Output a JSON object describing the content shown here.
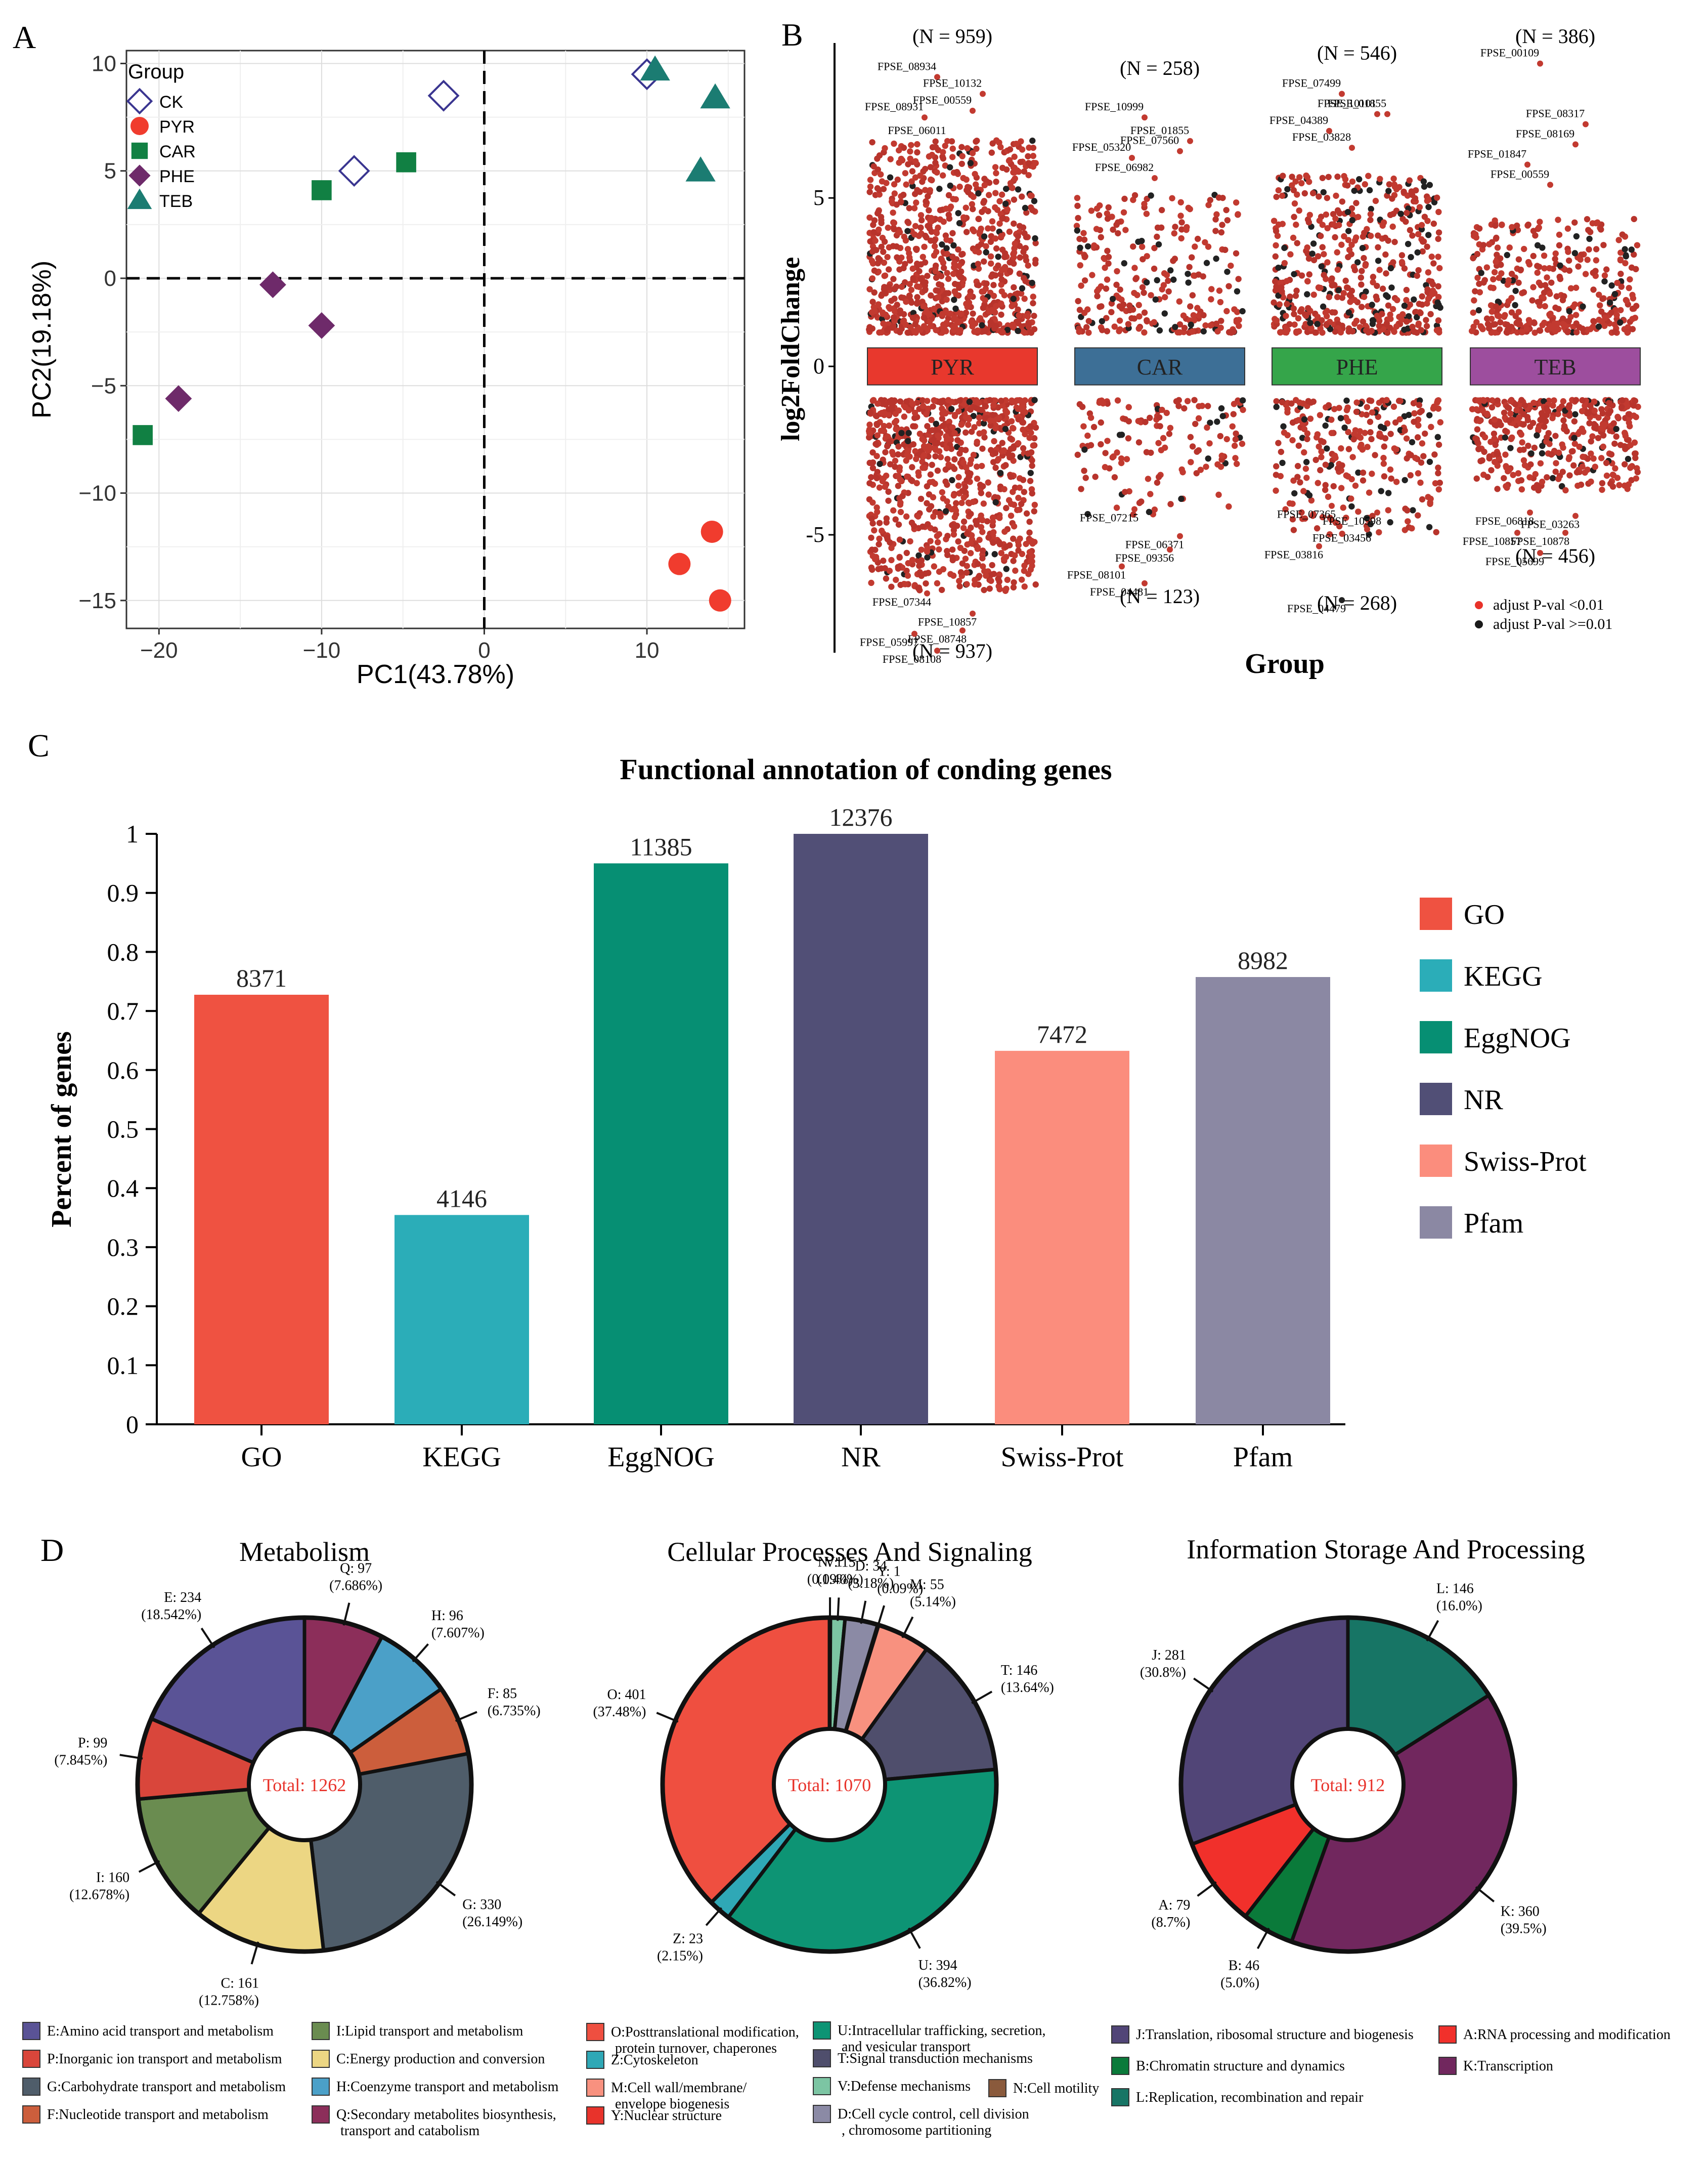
{
  "panel_labels": [
    "A",
    "B",
    "C",
    "D"
  ],
  "chart_data": [
    {
      "type": "scatter",
      "id": "pca",
      "xlabel": "PC1(43.78%)",
      "ylabel": "PC2(19.18%)",
      "xlim": [
        -22,
        16
      ],
      "ylim": [
        -16.3,
        10.6
      ],
      "xticks": [
        -20,
        -10,
        0,
        10
      ],
      "xtick_labels": [
        "−20",
        "−10",
        "0",
        "10"
      ],
      "yticks": [
        -15,
        -10,
        -5,
        0,
        5,
        10
      ],
      "ytick_labels": [
        "−15",
        "−10",
        "−5",
        "0",
        "5",
        "10"
      ],
      "legend_title": "Group",
      "series": [
        {
          "name": "CK",
          "marker": "diamond-open",
          "color": "#3a3590",
          "points": [
            [
              -8,
              5
            ],
            [
              -2.5,
              8.5
            ],
            [
              10,
              9.5
            ]
          ]
        },
        {
          "name": "PYR",
          "marker": "circle",
          "color": "#f03c2e",
          "points": [
            [
              12,
              -13.3
            ],
            [
              14,
              -11.8
            ],
            [
              14.5,
              -15
            ]
          ]
        },
        {
          "name": "CAR",
          "marker": "square",
          "color": "#118043",
          "points": [
            [
              -21,
              -7.3
            ],
            [
              -10,
              4.1
            ],
            [
              -4.8,
              5.4
            ]
          ]
        },
        {
          "name": "PHE",
          "marker": "diamond",
          "color": "#6e2a6a",
          "points": [
            [
              -13,
              -0.3
            ],
            [
              -10,
              -2.2
            ],
            [
              -18.8,
              -5.6
            ]
          ]
        },
        {
          "name": "TEB",
          "marker": "triangle",
          "color": "#1b7c72",
          "points": [
            [
              10.5,
              9.7
            ],
            [
              14.2,
              8.4
            ],
            [
              13.3,
              5
            ]
          ]
        }
      ]
    },
    {
      "type": "scatter",
      "id": "volcano-groups",
      "ylabel": "log2FoldChange",
      "xlabel": "Group",
      "ylim": [
        -8.5,
        9.6
      ],
      "yticks": [
        -5,
        0,
        5
      ],
      "groups": [
        {
          "name": "PYR",
          "color": "#e8382d",
          "n_up": "(N = 959)",
          "n_down": "(N = 937)",
          "up_labels": [
            [
              "FPSE_08934",
              8.8
            ],
            [
              "FPSE_10132",
              8.3
            ],
            [
              "FPSE_00559",
              7.8
            ],
            [
              "FPSE_08931",
              7.6
            ],
            [
              "FPSE_06011",
              6.9
            ]
          ],
          "down_labels": [
            [
              "FPSE_07344",
              -7.1
            ],
            [
              "FPSE_10857",
              -7.7
            ],
            [
              "FPSE_08748",
              -8.2
            ],
            [
              "FPSE_05997",
              -8.3
            ],
            [
              "FPSE_08108",
              -8.8
            ]
          ]
        },
        {
          "name": "CAR",
          "color": "#3d6f96",
          "n_up": "(N = 258)",
          "n_down": "(N = 123)",
          "up_labels": [
            [
              "FPSE_10999",
              7.6
            ],
            [
              "FPSE_01855",
              6.9
            ],
            [
              "FPSE_07560",
              6.6
            ],
            [
              "FPSE_05320",
              6.4
            ],
            [
              "FPSE_06982",
              5.8
            ]
          ],
          "down_labels": [
            [
              "FPSE_07215",
              -4.6
            ],
            [
              "FPSE_06371",
              -5.4
            ],
            [
              "FPSE_09356",
              -5.8
            ],
            [
              "FPSE_08101",
              -6.3
            ],
            [
              "FPSE_04481",
              -6.8
            ]
          ]
        },
        {
          "name": "PHE",
          "color": "#35a54a",
          "n_up": "(N = 546)",
          "n_down": "(N = 268)",
          "up_labels": [
            [
              "FPSE_07499",
              8.3
            ],
            [
              "FPSE_01855",
              7.7
            ],
            [
              "FPSE_10101",
              7.7
            ],
            [
              "FPSE_04389",
              7.2
            ],
            [
              "FPSE_03828",
              6.7
            ]
          ],
          "down_labels": [
            [
              "FPSE_07365",
              -4.5
            ],
            [
              "FPSE_10598",
              -4.7
            ],
            [
              "FPSE_03456",
              -5.2
            ],
            [
              "FPSE_03816",
              -5.7
            ],
            [
              "FPSE_04479",
              -7.3
            ]
          ]
        },
        {
          "name": "TEB",
          "color": "#9d4e9e",
          "n_up": "(N = 386)",
          "n_down": "(N = 456)",
          "up_labels": [
            [
              "FPSE_00109",
              9.2
            ],
            [
              "FPSE_08317",
              7.4
            ],
            [
              "FPSE_08169",
              6.8
            ],
            [
              "FPSE_01847",
              6.2
            ],
            [
              "FPSE_00559",
              5.6
            ]
          ],
          "down_labels": [
            [
              "FPSE_06818",
              -4.7
            ],
            [
              "FPSE_03263",
              -4.8
            ],
            [
              "FPSE_10878",
              -5.3
            ],
            [
              "FPSE_10857",
              -5.3
            ],
            [
              "FPSE_05699",
              -5.9
            ]
          ]
        }
      ],
      "legend": [
        {
          "label": "adjust P-val <0.01",
          "color": "#e8322a"
        },
        {
          "label": "adjust P-val >=0.01",
          "color": "#1a1a1a"
        }
      ]
    },
    {
      "type": "bar",
      "id": "functional-annotation",
      "title": "Functional annotation of conding genes",
      "ylabel": "Percent of genes",
      "xlabel": "",
      "ylim": [
        0,
        1
      ],
      "yticks": [
        "0",
        "0.1",
        "0.2",
        "0.3",
        "0.4",
        "0.5",
        "0.6",
        "0.7",
        "0.8",
        "0.9",
        "1"
      ],
      "categories": [
        "GO",
        "KEGG",
        "EggNOG",
        "NR",
        "Swiss-Prot",
        "Pfam"
      ],
      "values": [
        0.7275,
        0.3545,
        0.95,
        1.0,
        0.6325,
        0.7575
      ],
      "labels": [
        "8371",
        "4146",
        "11385",
        "12376",
        "7472",
        "8982"
      ],
      "colors": [
        "#ef5241",
        "#2badb8",
        "#068f73",
        "#514f76",
        "#fb8d7d",
        "#8b88a3"
      ]
    },
    {
      "type": "pie",
      "id": "metabolism",
      "title": "Metabolism",
      "total_label": "Total: 1262",
      "slices": [
        {
          "code": "Q",
          "value": 97,
          "pct": "(7.686%)",
          "color": "#8c2e5a"
        },
        {
          "code": "H",
          "value": 96,
          "pct": "(7.607%)",
          "color": "#4ba0c8"
        },
        {
          "code": "F",
          "value": 85,
          "pct": "(6.735%)",
          "color": "#cc5e3c"
        },
        {
          "code": "G",
          "value": 330,
          "pct": "(26.149%)",
          "color": "#4f5d6a"
        },
        {
          "code": "C",
          "value": 161,
          "pct": "(12.758%)",
          "color": "#ecd683"
        },
        {
          "code": "I",
          "value": 160,
          "pct": "(12.678%)",
          "color": "#6a8c50"
        },
        {
          "code": "P",
          "value": 99,
          "pct": "(7.845%)",
          "color": "#d9463b"
        },
        {
          "code": "E",
          "value": 234,
          "pct": "(18.542%)",
          "color": "#5a5396"
        }
      ]
    },
    {
      "type": "pie",
      "id": "cellular-processes",
      "title": "Cellular Processes And Signaling",
      "total_label": "Total: 1070",
      "slices": [
        {
          "code": "N",
          "value": 1,
          "pct": "(0.09%)",
          "color": "#8a5a3c"
        },
        {
          "code": "V",
          "value": 15,
          "pct": "(1.40%)",
          "color": "#7cc5a3"
        },
        {
          "code": "D",
          "value": 34,
          "pct": "(3.18%)",
          "color": "#8b8aa5"
        },
        {
          "code": "Y",
          "value": 1,
          "pct": "(0.09%)",
          "color": "#e8332b"
        },
        {
          "code": "M",
          "value": 55,
          "pct": "(5.14%)",
          "color": "#f8917f"
        },
        {
          "code": "T",
          "value": 146,
          "pct": "(13.64%)",
          "color": "#4f4e6c"
        },
        {
          "code": "U",
          "value": 394,
          "pct": "(36.82%)",
          "color": "#0d9474"
        },
        {
          "code": "Z",
          "value": 23,
          "pct": "(2.15%)",
          "color": "#2fa8b6"
        },
        {
          "code": "O",
          "value": 401,
          "pct": "(37.48%)",
          "color": "#ef4f40"
        }
      ]
    },
    {
      "type": "pie",
      "id": "information-storage",
      "title": "Information Storage And Processing",
      "total_label": "Total: 912",
      "slices": [
        {
          "code": "L",
          "value": 146,
          "pct": "(16.0%)",
          "color": "#177565"
        },
        {
          "code": "K",
          "value": 360,
          "pct": "(39.5%)",
          "color": "#71275e"
        },
        {
          "code": "B",
          "value": 46,
          "pct": "(5.0%)",
          "color": "#0a7a3a"
        },
        {
          "code": "A",
          "value": 79,
          "pct": "(8.7%)",
          "color": "#f1302b"
        },
        {
          "code": "J",
          "value": 281,
          "pct": "(30.8%)",
          "color": "#514577"
        }
      ]
    }
  ],
  "pie_legend": {
    "metabolism_col1": [
      {
        "label": "E:Amino acid transport and metabolism",
        "color": "#5a5396"
      },
      {
        "label": "P:Inorganic ion transport and metabolism",
        "color": "#d9463b"
      },
      {
        "label": "G:Carbohydrate transport and metabolism",
        "color": "#4f5d6a"
      },
      {
        "label": "F:Nucleotide transport and metabolism",
        "color": "#cc5e3c"
      }
    ],
    "metabolism_col2": [
      {
        "label": "I:Lipid transport and metabolism",
        "color": "#6a8c50"
      },
      {
        "label": "C:Energy production and conversion",
        "color": "#ecd683"
      },
      {
        "label": "H:Coenzyme transport and metabolism",
        "color": "#4ba0c8"
      },
      {
        "label": "Q:Secondary metabolites biosynthesis,",
        "label2": "transport and catabolism",
        "color": "#8c2e5a"
      }
    ],
    "cellular_col1": [
      {
        "label": "O:Posttranslational modification,",
        "label2": "protein turnover, chaperones",
        "color": "#ef4f40"
      },
      {
        "label": "Z:Cytoskeleton",
        "color": "#2fa8b6"
      },
      {
        "label": "M:Cell wall/membrane/",
        "label2": "envelope biogenesis",
        "color": "#f8917f"
      },
      {
        "label": "Y:Nuclear structure",
        "color": "#e8332b"
      }
    ],
    "cellular_col2": [
      {
        "label": "U:Intracellular trafficking, secretion,",
        "label2": "and vesicular transport",
        "color": "#0d9474"
      },
      {
        "label": "T:Signal transduction mechanisms",
        "color": "#4f4e6c"
      },
      {
        "label": "V:Defense mechanisms",
        "color": "#7cc5a3"
      },
      {
        "label": "D:Cell cycle control, cell division",
        "label2": ", chromosome partitioning",
        "color": "#8b8aa5"
      }
    ],
    "cellular_col3": [
      {
        "label": "N:Cell motility",
        "color": "#8a5a3c"
      }
    ],
    "info_col1": [
      {
        "label": "J:Translation, ribosomal structure and biogenesis",
        "color": "#514577"
      },
      {
        "label": "B:Chromatin structure and dynamics",
        "color": "#0a7a3a"
      },
      {
        "label": "L:Replication, recombination and repair",
        "color": "#177565"
      }
    ],
    "info_col2": [
      {
        "label": "A:RNA processing and modification",
        "color": "#f1302b"
      },
      {
        "label": "K:Transcription",
        "color": "#71275e"
      }
    ]
  }
}
